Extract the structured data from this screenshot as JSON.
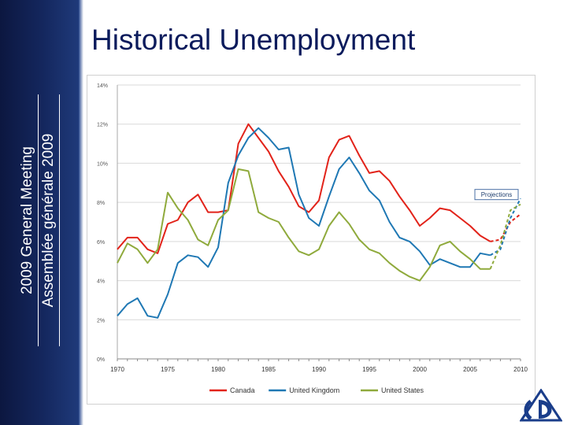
{
  "slide": {
    "title": "Historical Unemployment",
    "sidebar_line1": "2009 General Meeting",
    "sidebar_line2": "Assemblée générale 2009"
  },
  "colors": {
    "sidebar": "#14275e",
    "title": "#0b1b5c",
    "canada": "#e2231a",
    "uk": "#1f78b4",
    "us": "#8faa3c"
  },
  "chart_data": {
    "type": "line",
    "title": "",
    "xlabel": "",
    "ylabel": "",
    "xlim": [
      1970,
      2010
    ],
    "ylim": [
      0,
      14
    ],
    "x_ticks": [
      1970,
      1975,
      1980,
      1985,
      1990,
      1995,
      2000,
      2005,
      2010
    ],
    "y_ticks": [
      0,
      2,
      4,
      6,
      8,
      10,
      12,
      14
    ],
    "y_tick_labels": [
      "0%",
      "2%",
      "4%",
      "6%",
      "8%",
      "10%",
      "12%",
      "14%"
    ],
    "grid": "horizontal",
    "legend_position": "bottom",
    "annotation": "Projections",
    "series": [
      {
        "name": "Canada",
        "color": "#e2231a",
        "points": [
          [
            1970,
            5.6
          ],
          [
            1971,
            6.2
          ],
          [
            1972,
            6.2
          ],
          [
            1973,
            5.6
          ],
          [
            1974,
            5.4
          ],
          [
            1975,
            6.9
          ],
          [
            1976,
            7.1
          ],
          [
            1977,
            8.0
          ],
          [
            1978,
            8.4
          ],
          [
            1979,
            7.5
          ],
          [
            1980,
            7.5
          ],
          [
            1981,
            7.6
          ],
          [
            1982,
            11.0
          ],
          [
            1983,
            12.0
          ],
          [
            1984,
            11.3
          ],
          [
            1985,
            10.6
          ],
          [
            1986,
            9.6
          ],
          [
            1987,
            8.8
          ],
          [
            1988,
            7.8
          ],
          [
            1989,
            7.5
          ],
          [
            1990,
            8.1
          ],
          [
            1991,
            10.3
          ],
          [
            1992,
            11.2
          ],
          [
            1993,
            11.4
          ],
          [
            1994,
            10.4
          ],
          [
            1995,
            9.5
          ],
          [
            1996,
            9.6
          ],
          [
            1997,
            9.1
          ],
          [
            1998,
            8.3
          ],
          [
            1999,
            7.6
          ],
          [
            2000,
            6.8
          ],
          [
            2001,
            7.2
          ],
          [
            2002,
            7.7
          ],
          [
            2003,
            7.6
          ],
          [
            2004,
            7.2
          ],
          [
            2005,
            6.8
          ],
          [
            2006,
            6.3
          ],
          [
            2007,
            6.0
          ]
        ],
        "projection": [
          [
            2007,
            6.0
          ],
          [
            2008,
            6.1
          ],
          [
            2009,
            7.0
          ],
          [
            2010,
            7.4
          ]
        ]
      },
      {
        "name": "United Kingdom",
        "color": "#1f78b4",
        "points": [
          [
            1970,
            2.2
          ],
          [
            1971,
            2.8
          ],
          [
            1972,
            3.1
          ],
          [
            1973,
            2.2
          ],
          [
            1974,
            2.1
          ],
          [
            1975,
            3.3
          ],
          [
            1976,
            4.9
          ],
          [
            1977,
            5.3
          ],
          [
            1978,
            5.2
          ],
          [
            1979,
            4.7
          ],
          [
            1980,
            5.7
          ],
          [
            1981,
            9.0
          ],
          [
            1982,
            10.4
          ],
          [
            1983,
            11.3
          ],
          [
            1984,
            11.8
          ],
          [
            1985,
            11.3
          ],
          [
            1986,
            10.7
          ],
          [
            1987,
            10.8
          ],
          [
            1988,
            8.4
          ],
          [
            1989,
            7.2
          ],
          [
            1990,
            6.8
          ],
          [
            1991,
            8.3
          ],
          [
            1992,
            9.7
          ],
          [
            1993,
            10.3
          ],
          [
            1994,
            9.5
          ],
          [
            1995,
            8.6
          ],
          [
            1996,
            8.1
          ],
          [
            1997,
            7.0
          ],
          [
            1998,
            6.2
          ],
          [
            1999,
            6.0
          ],
          [
            2000,
            5.5
          ],
          [
            2001,
            4.8
          ],
          [
            2002,
            5.1
          ],
          [
            2003,
            4.9
          ],
          [
            2004,
            4.7
          ],
          [
            2005,
            4.7
          ],
          [
            2006,
            5.4
          ],
          [
            2007,
            5.3
          ]
        ],
        "projection": [
          [
            2007,
            5.3
          ],
          [
            2008,
            5.6
          ],
          [
            2009,
            7.2
          ],
          [
            2010,
            8.2
          ]
        ]
      },
      {
        "name": "United States",
        "color": "#8faa3c",
        "points": [
          [
            1970,
            4.9
          ],
          [
            1971,
            5.9
          ],
          [
            1972,
            5.6
          ],
          [
            1973,
            4.9
          ],
          [
            1974,
            5.6
          ],
          [
            1975,
            8.5
          ],
          [
            1976,
            7.7
          ],
          [
            1977,
            7.1
          ],
          [
            1978,
            6.1
          ],
          [
            1979,
            5.8
          ],
          [
            1980,
            7.1
          ],
          [
            1981,
            7.6
          ],
          [
            1982,
            9.7
          ],
          [
            1983,
            9.6
          ],
          [
            1984,
            7.5
          ],
          [
            1985,
            7.2
          ],
          [
            1986,
            7.0
          ],
          [
            1987,
            6.2
          ],
          [
            1988,
            5.5
          ],
          [
            1989,
            5.3
          ],
          [
            1990,
            5.6
          ],
          [
            1991,
            6.8
          ],
          [
            1992,
            7.5
          ],
          [
            1993,
            6.9
          ],
          [
            1994,
            6.1
          ],
          [
            1995,
            5.6
          ],
          [
            1996,
            5.4
          ],
          [
            1997,
            4.9
          ],
          [
            1998,
            4.5
          ],
          [
            1999,
            4.2
          ],
          [
            2000,
            4.0
          ],
          [
            2001,
            4.7
          ],
          [
            2002,
            5.8
          ],
          [
            2003,
            6.0
          ],
          [
            2004,
            5.5
          ],
          [
            2005,
            5.1
          ],
          [
            2006,
            4.6
          ],
          [
            2007,
            4.6
          ]
        ],
        "projection": [
          [
            2007,
            4.6
          ],
          [
            2008,
            5.8
          ],
          [
            2009,
            7.6
          ],
          [
            2010,
            7.9
          ]
        ]
      }
    ]
  }
}
